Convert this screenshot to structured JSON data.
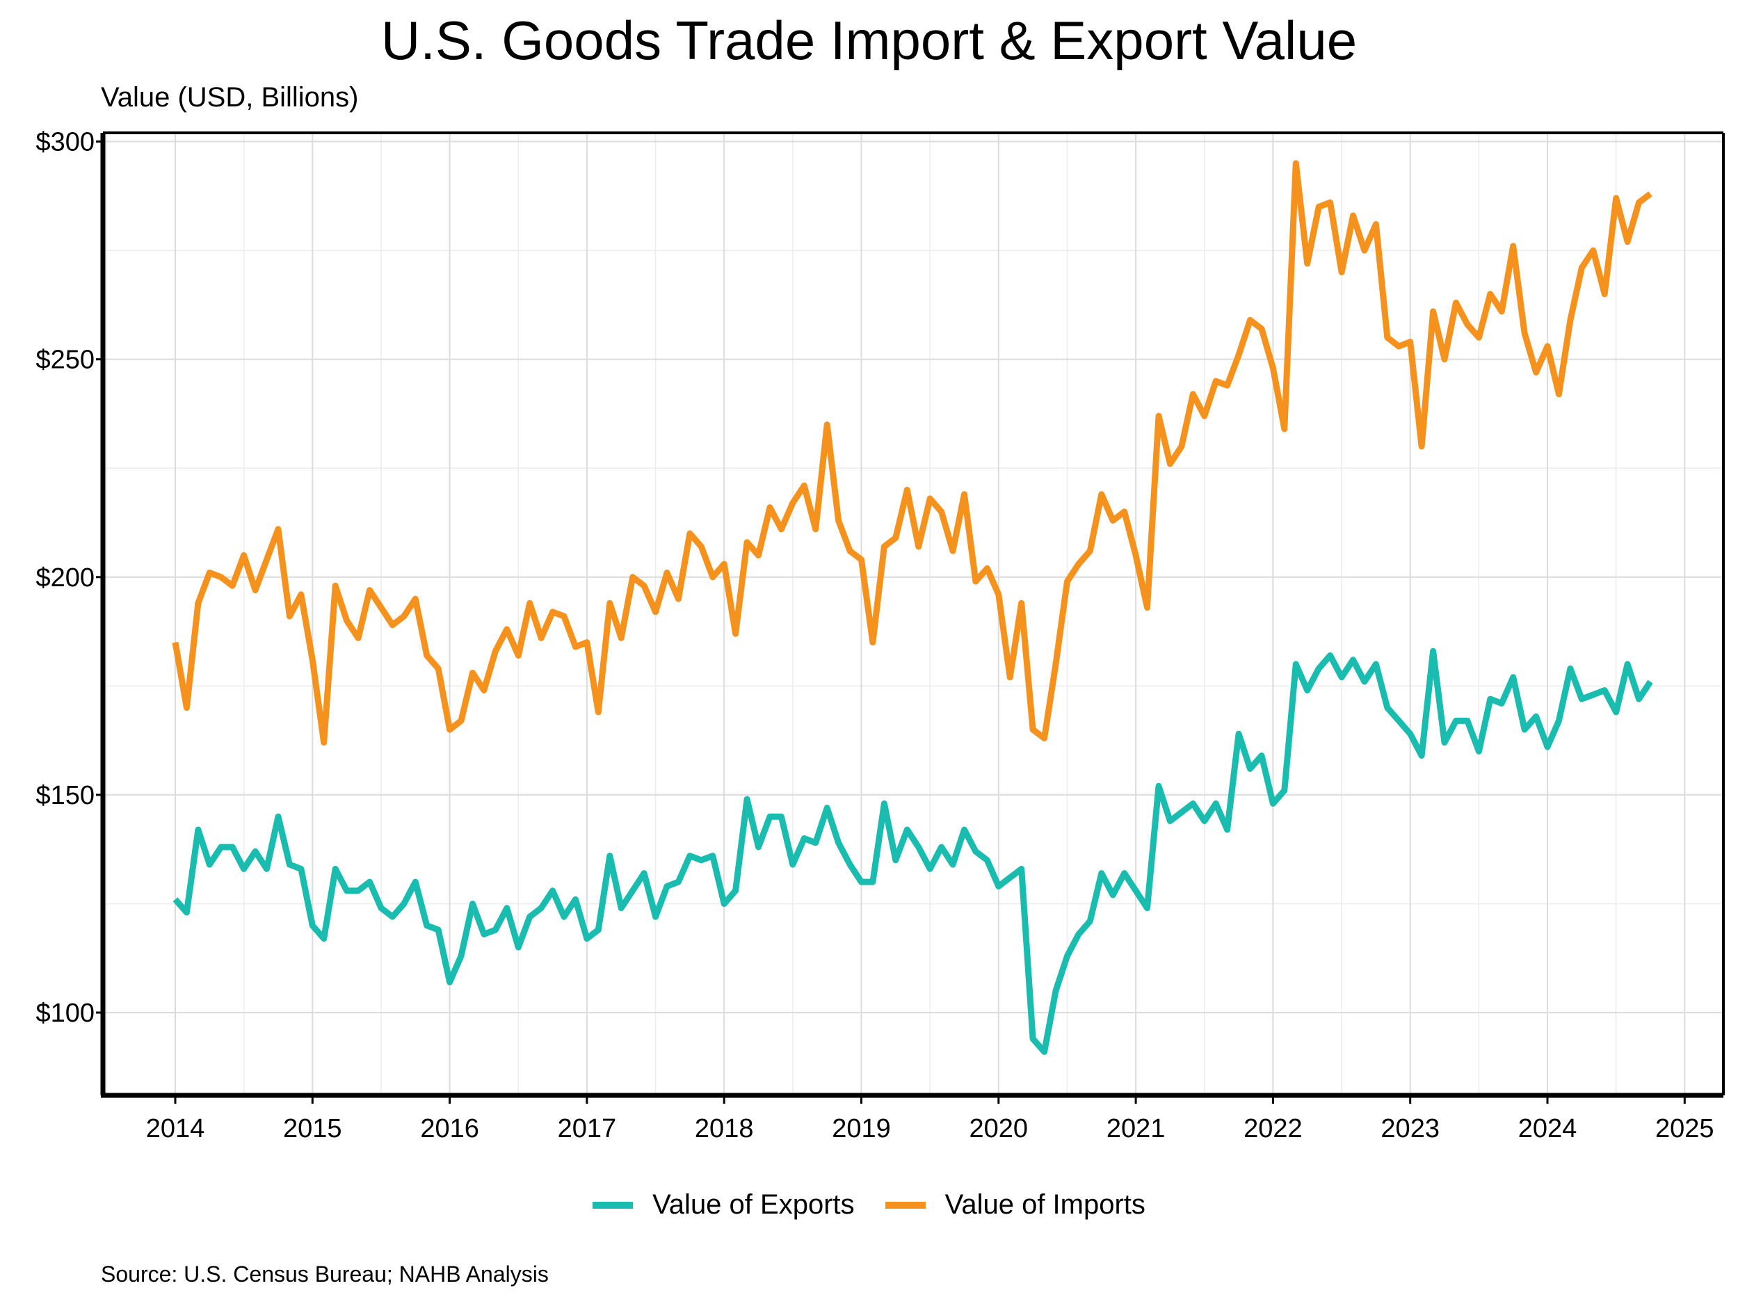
{
  "chart_data": {
    "type": "line",
    "title": "U.S. Goods Trade Import & Export Value",
    "ylabel": "Value (USD, Billions)",
    "xlabel": "",
    "source": "Source: U.S. Census Bureau; NAHB Analysis",
    "x_start": "2014-01",
    "x_ticks": [
      "2014",
      "2015",
      "2016",
      "2017",
      "2018",
      "2019",
      "2020",
      "2021",
      "2022",
      "2023",
      "2024",
      "2025"
    ],
    "y_ticks": [
      "$100",
      "$150",
      "$200",
      "$250",
      "$300"
    ],
    "ylim": [
      81,
      302
    ],
    "grid": true,
    "legend_position": "bottom",
    "series": [
      {
        "name": "Value of Exports",
        "color": "#1bbcb0",
        "values": [
          126,
          123,
          142,
          134,
          138,
          138,
          133,
          137,
          133,
          145,
          134,
          133,
          120,
          117,
          133,
          128,
          128,
          130,
          124,
          122,
          125,
          130,
          120,
          119,
          107,
          113,
          125,
          118,
          119,
          124,
          115,
          122,
          124,
          128,
          122,
          126,
          117,
          119,
          136,
          124,
          128,
          132,
          122,
          129,
          130,
          136,
          135,
          136,
          125,
          128,
          149,
          138,
          145,
          145,
          134,
          140,
          139,
          147,
          139,
          134,
          130,
          130,
          148,
          135,
          142,
          138,
          133,
          138,
          134,
          142,
          137,
          135,
          129,
          131,
          133,
          94,
          91,
          105,
          113,
          118,
          121,
          132,
          127,
          132,
          128,
          124,
          152,
          144,
          146,
          148,
          144,
          148,
          142,
          164,
          156,
          159,
          148,
          151,
          180,
          174,
          179,
          182,
          177,
          181,
          176,
          180,
          170,
          167,
          164,
          159,
          183,
          162,
          167,
          167,
          160,
          172,
          171,
          177,
          165,
          168,
          161,
          167,
          179,
          172,
          173,
          174,
          169,
          180,
          172,
          176
        ]
      },
      {
        "name": "Value of Imports",
        "color": "#f5921e",
        "values": [
          185,
          170,
          194,
          201,
          200,
          198,
          205,
          197,
          204,
          211,
          191,
          196,
          181,
          162,
          198,
          190,
          186,
          197,
          193,
          189,
          191,
          195,
          182,
          179,
          165,
          167,
          178,
          174,
          183,
          188,
          182,
          194,
          186,
          192,
          191,
          184,
          185,
          169,
          194,
          186,
          200,
          198,
          192,
          201,
          195,
          210,
          207,
          200,
          203,
          187,
          208,
          205,
          216,
          211,
          217,
          221,
          211,
          235,
          213,
          206,
          204,
          185,
          207,
          209,
          220,
          207,
          218,
          215,
          206,
          219,
          199,
          202,
          196,
          177,
          194,
          165,
          163,
          180,
          199,
          203,
          206,
          219,
          213,
          215,
          205,
          193,
          237,
          226,
          230,
          242,
          237,
          245,
          244,
          251,
          259,
          257,
          248,
          234,
          295,
          272,
          285,
          286,
          270,
          283,
          275,
          281,
          255,
          253,
          254,
          230,
          261,
          250,
          263,
          258,
          255,
          265,
          261,
          276,
          256,
          247,
          253,
          242,
          259,
          271,
          275,
          265,
          287,
          277,
          286,
          288
        ]
      }
    ]
  }
}
